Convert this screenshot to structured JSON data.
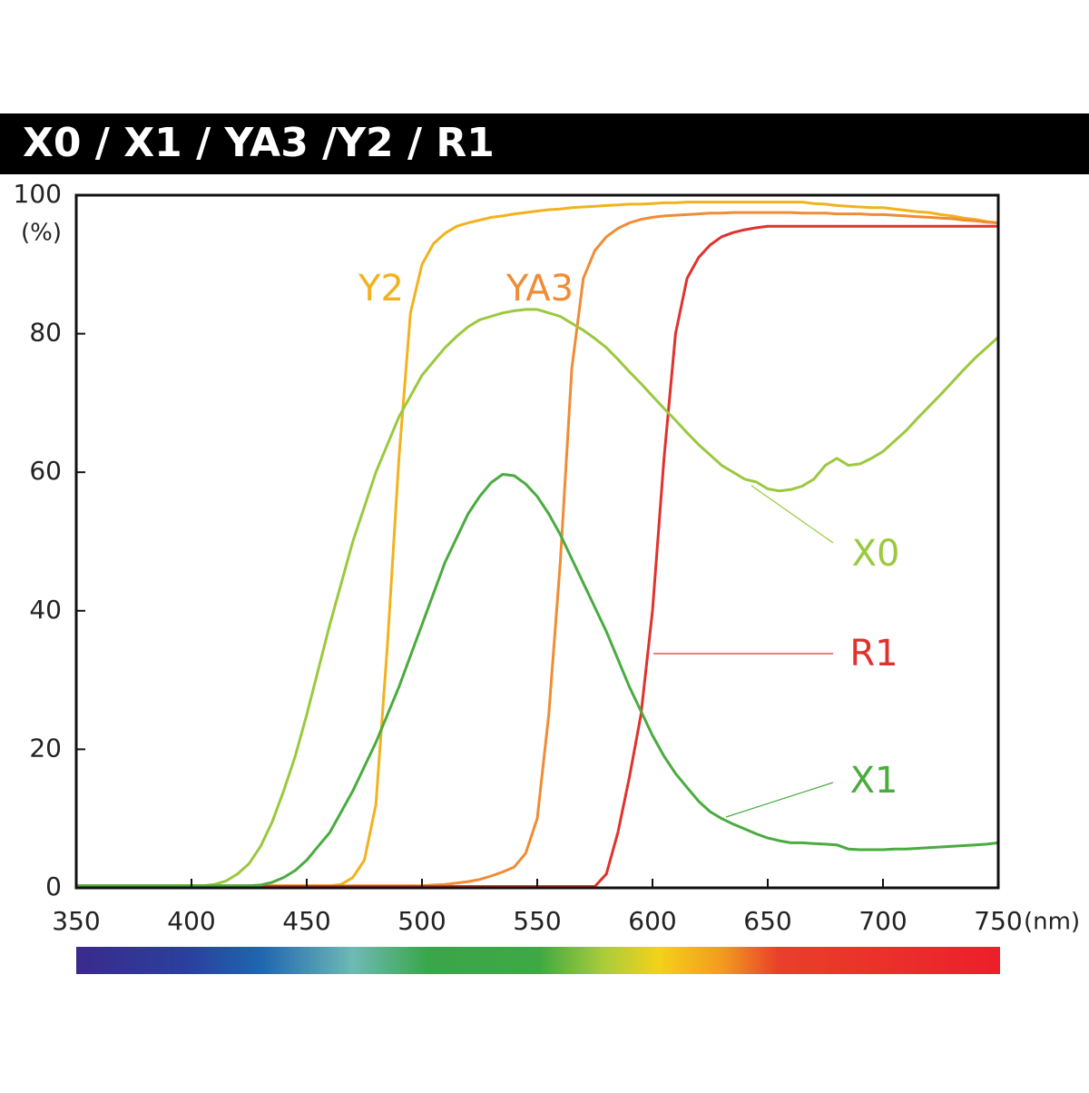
{
  "chart_data": {
    "type": "line",
    "title": "X0 / X1 / YA3 /Y2 / R1",
    "x_unit": "(nm)",
    "y_unit": "(%)",
    "xlim": [
      350,
      750
    ],
    "xticks": [
      350,
      400,
      450,
      500,
      550,
      600,
      650,
      700,
      750
    ],
    "ylim": [
      0,
      100
    ],
    "yticks": [
      0,
      20,
      40,
      60,
      80,
      100
    ],
    "x": [
      350,
      355,
      360,
      365,
      370,
      375,
      380,
      385,
      390,
      395,
      400,
      405,
      410,
      415,
      420,
      425,
      430,
      435,
      440,
      445,
      450,
      455,
      460,
      465,
      470,
      475,
      480,
      485,
      490,
      495,
      500,
      505,
      510,
      515,
      520,
      525,
      530,
      535,
      540,
      545,
      550,
      555,
      560,
      565,
      570,
      575,
      580,
      585,
      590,
      595,
      600,
      605,
      610,
      615,
      620,
      625,
      630,
      635,
      640,
      645,
      650,
      655,
      660,
      665,
      670,
      675,
      680,
      685,
      690,
      695,
      700,
      705,
      710,
      715,
      720,
      725,
      730,
      735,
      740,
      745,
      750
    ],
    "series": [
      {
        "name": "Y2",
        "color": "#f2b21e",
        "values": [
          0.3,
          0.3,
          0.3,
          0.3,
          0.3,
          0.3,
          0.3,
          0.3,
          0.3,
          0.3,
          0.3,
          0.3,
          0.3,
          0.3,
          0.3,
          0.3,
          0.3,
          0.3,
          0.3,
          0.3,
          0.3,
          0.3,
          0.3,
          0.5,
          1.5,
          4,
          12,
          35,
          62,
          83,
          90,
          93,
          94.5,
          95.5,
          96,
          96.4,
          96.8,
          97,
          97.3,
          97.5,
          97.7,
          97.9,
          98,
          98.2,
          98.3,
          98.4,
          98.5,
          98.6,
          98.7,
          98.7,
          98.8,
          98.9,
          98.9,
          99,
          99,
          99,
          99,
          99,
          99,
          99,
          99,
          99,
          99,
          99,
          98.8,
          98.7,
          98.5,
          98.4,
          98.3,
          98.2,
          98.2,
          98,
          97.8,
          97.6,
          97.5,
          97.2,
          97,
          96.7,
          96.5,
          96.2,
          96
        ]
      },
      {
        "name": "YA3",
        "color": "#ef8c35",
        "values": [
          0.3,
          0.3,
          0.3,
          0.3,
          0.3,
          0.3,
          0.3,
          0.3,
          0.3,
          0.3,
          0.3,
          0.3,
          0.3,
          0.3,
          0.3,
          0.3,
          0.3,
          0.3,
          0.3,
          0.3,
          0.3,
          0.3,
          0.3,
          0.3,
          0.3,
          0.3,
          0.3,
          0.3,
          0.3,
          0.3,
          0.3,
          0.4,
          0.5,
          0.7,
          0.9,
          1.2,
          1.7,
          2.3,
          3,
          5,
          10,
          25,
          47,
          75,
          88,
          92,
          94,
          95.2,
          96,
          96.5,
          96.8,
          97,
          97.1,
          97.2,
          97.3,
          97.4,
          97.4,
          97.5,
          97.5,
          97.5,
          97.5,
          97.5,
          97.5,
          97.4,
          97.4,
          97.4,
          97.3,
          97.3,
          97.3,
          97.2,
          97.2,
          97.1,
          97,
          96.9,
          96.8,
          96.7,
          96.6,
          96.4,
          96.3,
          96.1,
          96
        ]
      },
      {
        "name": "R1",
        "color": "#e0322d",
        "values": [
          0.2,
          0.2,
          0.2,
          0.2,
          0.2,
          0.2,
          0.2,
          0.2,
          0.2,
          0.2,
          0.2,
          0.2,
          0.2,
          0.2,
          0.2,
          0.2,
          0.2,
          0.2,
          0.2,
          0.2,
          0.2,
          0.2,
          0.2,
          0.2,
          0.2,
          0.2,
          0.2,
          0.2,
          0.2,
          0.2,
          0.2,
          0.2,
          0.2,
          0.2,
          0.2,
          0.2,
          0.2,
          0.2,
          0.2,
          0.2,
          0.2,
          0.2,
          0.2,
          0.2,
          0.2,
          0.2,
          2,
          8,
          16,
          25,
          40,
          62,
          80,
          88,
          91,
          92.8,
          94,
          94.6,
          95,
          95.3,
          95.5,
          95.5,
          95.5,
          95.5,
          95.5,
          95.5,
          95.5,
          95.5,
          95.5,
          95.5,
          95.5,
          95.5,
          95.5,
          95.5,
          95.5,
          95.5,
          95.5,
          95.5,
          95.5,
          95.5,
          95.5
        ]
      },
      {
        "name": "X0",
        "color": "#9ac93d",
        "values": [
          0.3,
          0.3,
          0.3,
          0.3,
          0.3,
          0.3,
          0.3,
          0.3,
          0.3,
          0.3,
          0.3,
          0.3,
          0.5,
          1,
          2,
          3.5,
          6,
          9.5,
          14,
          19,
          25,
          31.5,
          38,
          44,
          50,
          55,
          60,
          64,
          68,
          71,
          74,
          76,
          78,
          79.6,
          81,
          82,
          82.5,
          83,
          83.3,
          83.5,
          83.5,
          83,
          82.5,
          81.5,
          80.5,
          79.3,
          78,
          76.3,
          74.5,
          72.8,
          71,
          69.2,
          67.5,
          65.7,
          64,
          62.5,
          61,
          60,
          59,
          58.6,
          57.6,
          57.3,
          57.5,
          58,
          59,
          61,
          62,
          61,
          61.2,
          62,
          63,
          64.5,
          66,
          67.8,
          69.5,
          71.2,
          73,
          74.8,
          76.5,
          78,
          79.5
        ]
      },
      {
        "name": "X1",
        "color": "#4aab3f",
        "values": [
          0.3,
          0.3,
          0.3,
          0.3,
          0.3,
          0.3,
          0.3,
          0.3,
          0.3,
          0.3,
          0.3,
          0.3,
          0.3,
          0.3,
          0.3,
          0.3,
          0.4,
          0.8,
          1.5,
          2.5,
          4,
          6,
          8,
          11,
          14,
          17.5,
          21,
          25,
          29,
          33.5,
          38,
          42.5,
          47,
          50.5,
          54,
          56.5,
          58.5,
          59.7,
          59.5,
          58.3,
          56.5,
          54,
          51,
          47.5,
          44,
          40.5,
          37,
          33,
          29,
          25.5,
          22,
          19,
          16.5,
          14.5,
          12.5,
          11,
          10,
          9.2,
          8.5,
          7.8,
          7.2,
          6.8,
          6.5,
          6.5,
          6.4,
          6.3,
          6.2,
          5.6,
          5.5,
          5.5,
          5.5,
          5.6,
          5.6,
          5.7,
          5.8,
          5.9,
          6,
          6.1,
          6.2,
          6.3,
          6.5
        ]
      }
    ]
  }
}
